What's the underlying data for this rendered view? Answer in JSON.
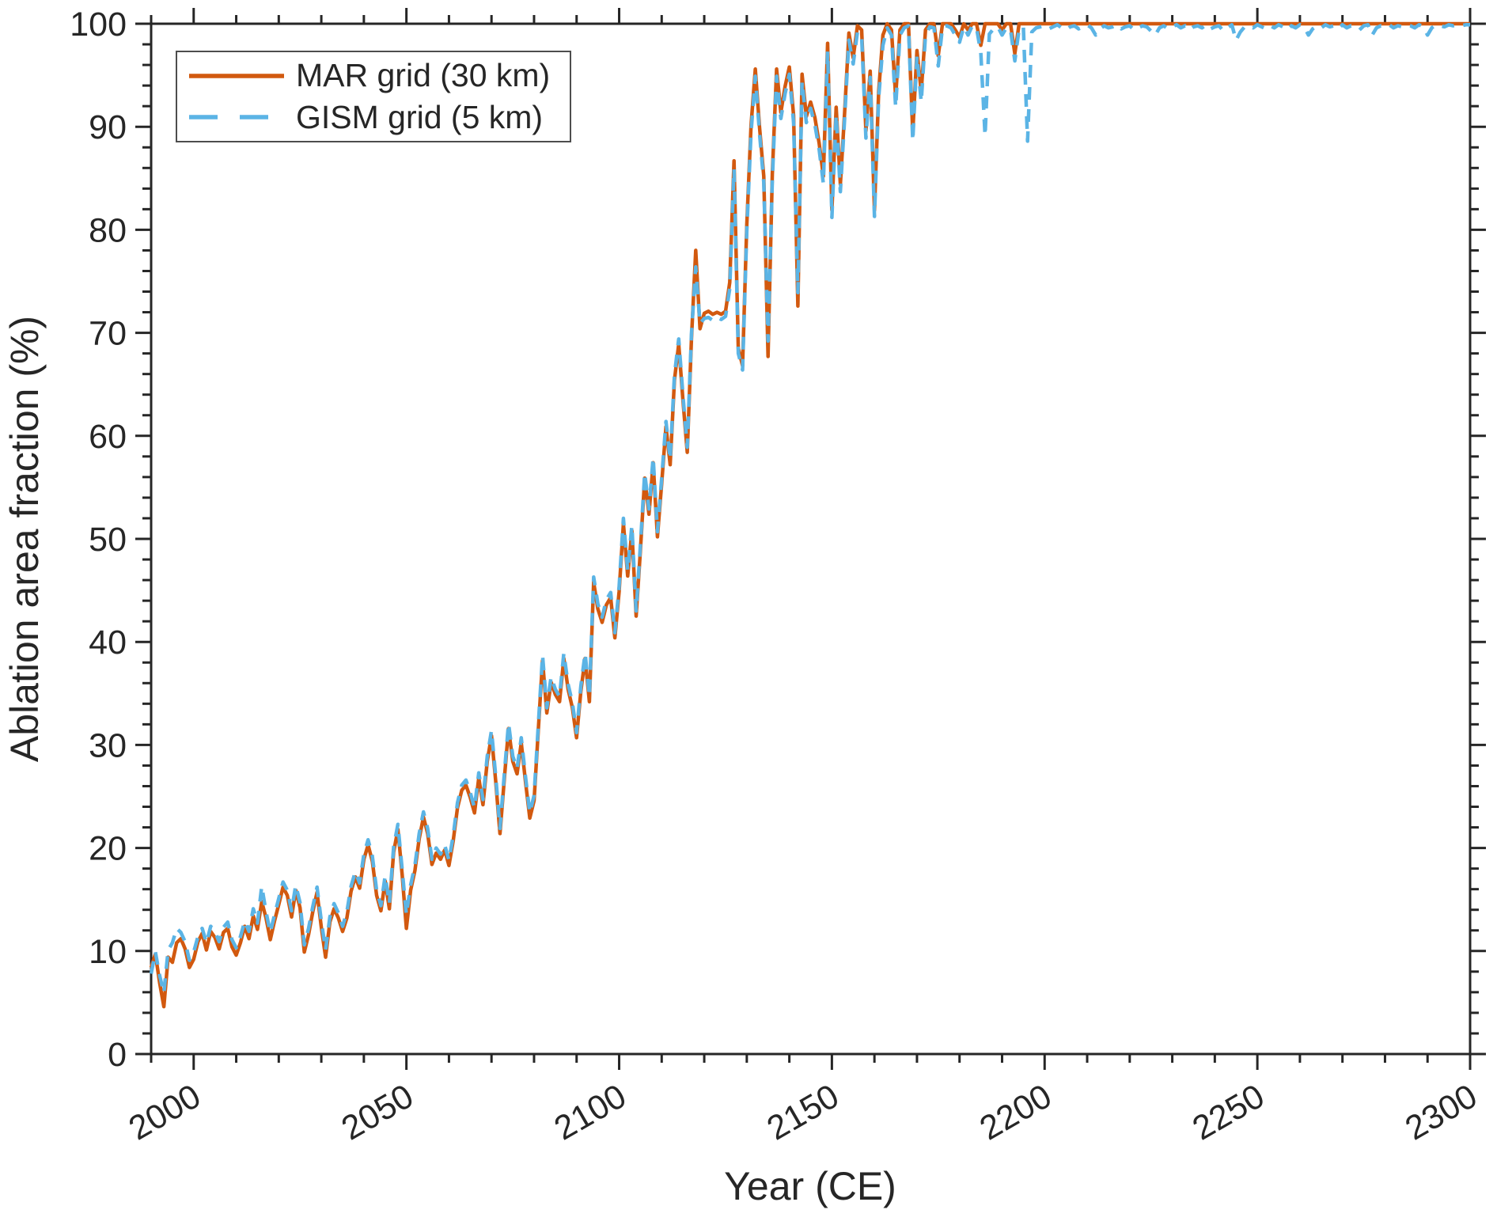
{
  "figure": {
    "xlabel": "Year (CE)",
    "ylabel": "Ablation area fraction (%)",
    "axis_color": "#262626",
    "background": "#ffffff"
  },
  "legend": {
    "position": "top-left",
    "entries": [
      {
        "label": "MAR grid (30 km)",
        "color": "#d2590f",
        "style": "solid"
      },
      {
        "label": "GISM grid (5 km)",
        "color": "#5bb4e5",
        "style": "dashed"
      }
    ]
  },
  "chart_data": {
    "type": "line",
    "title": "",
    "xlabel": "Year (CE)",
    "ylabel": "Ablation area fraction (%)",
    "xlim": [
      1990,
      2300
    ],
    "ylim": [
      0,
      100
    ],
    "x_major_ticks": [
      2000,
      2050,
      2100,
      2150,
      2200,
      2250,
      2300
    ],
    "y_major_ticks": [
      0,
      10,
      20,
      30,
      40,
      50,
      60,
      70,
      80,
      90,
      100
    ],
    "x_minor_step": 10,
    "y_minor_step": 2,
    "grid": false,
    "tick_direction": "out",
    "x_tick_label_rotation": -30,
    "legend_position": "top-left",
    "x_start": 1990,
    "x_step": 1,
    "x_end": 2300,
    "series": [
      {
        "name": "MAR grid (30 km)",
        "color": "#d2590f",
        "line_style": "solid",
        "values": [
          8.4,
          9.7,
          6.9,
          4.6,
          9.4,
          8.9,
          10.8,
          11.2,
          10.2,
          8.4,
          9.2,
          10.9,
          11.7,
          10.1,
          11.9,
          11.3,
          10.2,
          11.8,
          12.2,
          10.4,
          9.6,
          10.8,
          12.4,
          11.2,
          13.4,
          12.1,
          14.8,
          13.2,
          11.1,
          12.9,
          14.5,
          16.2,
          15.4,
          13.3,
          15.9,
          14.2,
          9.9,
          11.6,
          13.8,
          15.7,
          12.3,
          9.4,
          12.8,
          14.1,
          13.2,
          11.9,
          13.2,
          15.8,
          17.2,
          16.1,
          18.9,
          20.3,
          18.7,
          15.4,
          13.9,
          16.8,
          14.1,
          19.6,
          21.8,
          17.4,
          12.2,
          15.9,
          17.8,
          20.9,
          23.0,
          21.4,
          18.4,
          19.5,
          18.9,
          19.8,
          18.3,
          20.7,
          23.9,
          25.6,
          26.1,
          24.9,
          23.4,
          26.8,
          24.2,
          28.4,
          30.9,
          26.4,
          21.4,
          26.6,
          31.6,
          28.4,
          27.2,
          30.2,
          26.4,
          22.9,
          24.6,
          31.4,
          38.2,
          33.1,
          36.1,
          34.9,
          34.2,
          38.4,
          35.4,
          33.6,
          30.7,
          35.2,
          38.4,
          34.2,
          45.8,
          43.2,
          41.9,
          43.6,
          44.3,
          40.4,
          44.9,
          51.5,
          46.4,
          50.8,
          42.5,
          48.9,
          55.9,
          52.4,
          57.4,
          50.2,
          55.4,
          60.9,
          57.2,
          65.4,
          68.9,
          63.4,
          58.4,
          69.4,
          78.0,
          70.4,
          71.9,
          72.1,
          71.8,
          72.0,
          71.8,
          72.1,
          74.9,
          86.7,
          68.5,
          66.8,
          80.4,
          90.1,
          95.6,
          89.9,
          85.2,
          67.7,
          85.4,
          95.6,
          91.4,
          93.9,
          95.8,
          91.1,
          72.6,
          95.1,
          91.0,
          92.4,
          90.9,
          88.4,
          85.2,
          98.1,
          81.9,
          91.9,
          84.4,
          91.4,
          99.1,
          96.7,
          99.8,
          99.4,
          89.6,
          95.4,
          81.9,
          93.4,
          98.9,
          100,
          99.4,
          92.9,
          99.4,
          100,
          100,
          89.4,
          97.4,
          93.4,
          99.4,
          100,
          100,
          96.9,
          100,
          100,
          100,
          99.4,
          98.7,
          100,
          99.4,
          100,
          100,
          97.9,
          100,
          100,
          100,
          100,
          99.4,
          100,
          100,
          97.1,
          100,
          100,
          100,
          100,
          100,
          100,
          100,
          100,
          100,
          100,
          100,
          100,
          100,
          100,
          100,
          100,
          100,
          100,
          100,
          100,
          100,
          100,
          100,
          100,
          100,
          100,
          100,
          100,
          100,
          100,
          100,
          100,
          100,
          100,
          100,
          100,
          100,
          100,
          100,
          100,
          100,
          100,
          100,
          100,
          100,
          100,
          100,
          100,
          100,
          100,
          100,
          100,
          100,
          100,
          100,
          100,
          100,
          100,
          100,
          100,
          100,
          100,
          100,
          100,
          100,
          100,
          100,
          100,
          100,
          100,
          100,
          100,
          100,
          100,
          100,
          100,
          100,
          100,
          100,
          100,
          100,
          100,
          100,
          100,
          100,
          100,
          100,
          100,
          100,
          100,
          100,
          100,
          100,
          100,
          100,
          100,
          100,
          100,
          100,
          100,
          100,
          100,
          100,
          100,
          100,
          100,
          100
        ]
      },
      {
        "name": "GISM grid (5 km)",
        "color": "#5bb4e5",
        "line_style": "dashed",
        "values": [
          7.8,
          9.9,
          7.6,
          5.9,
          10.1,
          10.8,
          12.2,
          11.8,
          10.9,
          9.1,
          9.9,
          11.4,
          12.2,
          10.8,
          12.4,
          11.9,
          10.9,
          12.3,
          12.8,
          11.1,
          10.3,
          11.4,
          12.9,
          11.9,
          14.1,
          12.7,
          16.3,
          13.8,
          11.8,
          13.5,
          15.1,
          16.7,
          15.9,
          13.9,
          16.4,
          14.7,
          10.6,
          12.2,
          14.3,
          16.2,
          12.9,
          10.1,
          13.3,
          14.6,
          13.7,
          12.4,
          13.8,
          16.3,
          17.7,
          16.6,
          19.4,
          20.8,
          19.2,
          15.9,
          14.4,
          17.3,
          14.6,
          20.1,
          22.3,
          17.9,
          13.5,
          16.4,
          18.3,
          21.4,
          23.5,
          21.9,
          18.9,
          20.0,
          19.4,
          20.3,
          18.8,
          21.2,
          24.4,
          26.1,
          26.6,
          25.4,
          23.9,
          27.3,
          24.7,
          28.9,
          31.4,
          26.9,
          21.9,
          27.1,
          32.1,
          28.9,
          27.7,
          30.7,
          26.9,
          23.4,
          25.1,
          31.9,
          38.7,
          33.6,
          36.6,
          35.4,
          34.7,
          38.9,
          35.9,
          34.1,
          31.2,
          35.7,
          38.9,
          34.7,
          46.3,
          43.7,
          42.4,
          44.1,
          44.8,
          40.9,
          45.4,
          52.0,
          46.9,
          51.3,
          43.0,
          49.4,
          56.4,
          52.9,
          57.9,
          50.7,
          55.9,
          61.4,
          57.7,
          65.9,
          69.4,
          63.9,
          58.9,
          69.9,
          76.4,
          70.9,
          71.4,
          71.5,
          71.2,
          71.5,
          71.3,
          71.6,
          74.3,
          85.9,
          68.0,
          66.4,
          79.8,
          89.4,
          94.9,
          89.3,
          84.6,
          69.2,
          84.8,
          94.9,
          90.8,
          93.2,
          95.1,
          90.4,
          73.9,
          94.4,
          90.4,
          91.8,
          90.2,
          87.8,
          84.5,
          97.3,
          81.2,
          91.2,
          83.7,
          90.8,
          98.4,
          96.1,
          99.2,
          98.8,
          88.9,
          94.8,
          81.3,
          92.8,
          97.9,
          99.6,
          98.9,
          91.9,
          98.9,
          99.6,
          99.8,
          88.6,
          96.9,
          92.4,
          98.9,
          99.7,
          99.6,
          95.9,
          99.7,
          99.8,
          99.6,
          98.9,
          98.2,
          99.7,
          98.9,
          99.8,
          99.6,
          97.2,
          89.1,
          99.0,
          99.5,
          99.7,
          98.9,
          99.6,
          99.4,
          96.4,
          99.5,
          99.7,
          88.6,
          99.2,
          99.6,
          99.7,
          99.8,
          99.5,
          99.7,
          99.9,
          99.6,
          99.4,
          99.7,
          99.8,
          99.5,
          99.7,
          99.9,
          99.6,
          98.9,
          99.5,
          99.8,
          99.6,
          99.7,
          99.9,
          99.5,
          99.7,
          99.8,
          99.4,
          99.6,
          99.8,
          99.7,
          99.3,
          98.9,
          99.6,
          99.8,
          99.5,
          99.7,
          99.9,
          99.6,
          99.8,
          99.4,
          99.7,
          99.8,
          99.6,
          99.9,
          99.5,
          99.7,
          99.8,
          99.3,
          99.6,
          99.9,
          98.4,
          99.2,
          99.7,
          99.8,
          99.6,
          99.9,
          99.7,
          99.5,
          99.8,
          99.6,
          99.9,
          99.7,
          99.4,
          99.8,
          99.6,
          99.9,
          99.7,
          98.9,
          99.5,
          99.8,
          99.6,
          99.9,
          99.7,
          99.8,
          99.5,
          99.9,
          99.6,
          99.8,
          99.7,
          99.4,
          99.8,
          99.9,
          98.9,
          99.6,
          99.8,
          99.7,
          99.9,
          99.6,
          99.8,
          99.7,
          99.9,
          99.8,
          99.6,
          99.9,
          99.7,
          98.9,
          99.6,
          99.9,
          99.8,
          99.7,
          99.9,
          99.8,
          99.9,
          99.8,
          99.9,
          99.9
        ]
      }
    ]
  }
}
